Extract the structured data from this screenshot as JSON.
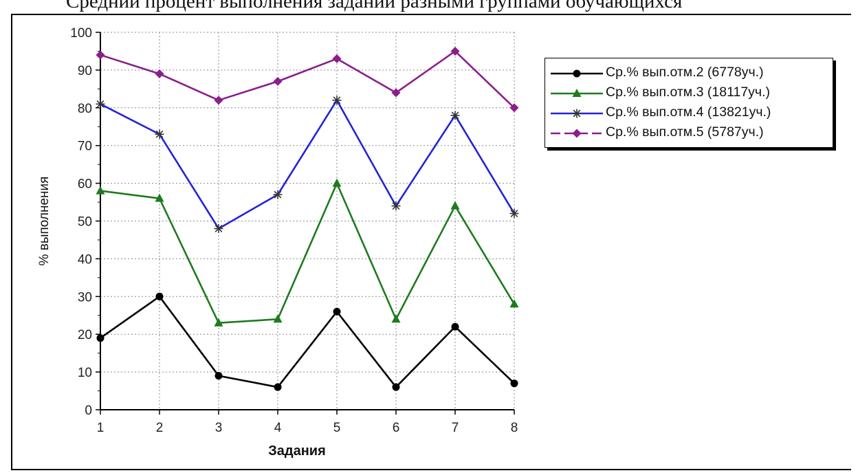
{
  "title": "Средний процент выполнения заданий разными группами обучающихся",
  "chart_data": {
    "type": "line",
    "title": "Средний процент выполнения заданий разными группами обучающихся",
    "xlabel": "Задания",
    "ylabel": "% выполнения",
    "categories": [
      "1",
      "2",
      "3",
      "4",
      "5",
      "6",
      "7",
      "8"
    ],
    "ylim": [
      0,
      100
    ],
    "yticks": [
      "0",
      "10",
      "20",
      "30",
      "40",
      "50",
      "60",
      "70",
      "80",
      "90",
      "100"
    ],
    "grid": true,
    "legend_position": "right",
    "series": [
      {
        "name": "Ср.% вып.отм.2 (6778уч.)",
        "values": [
          19,
          30,
          9,
          6,
          26,
          6,
          22,
          7
        ],
        "color": "#000000",
        "marker": "circle"
      },
      {
        "name": "Ср.% вып.отм.3 (18117уч.)",
        "values": [
          58,
          56,
          23,
          24,
          60,
          24,
          54,
          28
        ],
        "color": "#1e7b1e",
        "marker": "triangle"
      },
      {
        "name": "Ср.% вып.отм.4 (13821уч.)",
        "values": [
          81,
          73,
          48,
          57,
          82,
          54,
          78,
          52
        ],
        "color": "#2323d6",
        "marker": "star"
      },
      {
        "name": "Ср.% вып.отм.5 (5787уч.)",
        "values": [
          94,
          89,
          82,
          87,
          93,
          84,
          95,
          80
        ],
        "color": "#8b1e8b",
        "marker": "diamond"
      }
    ]
  }
}
